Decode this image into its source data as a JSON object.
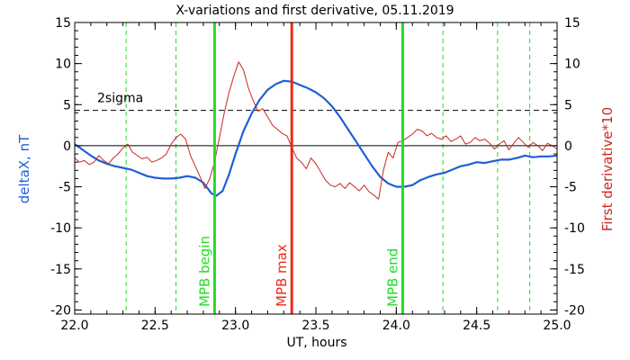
{
  "chart_data": {
    "type": "line",
    "title": "X-variations and first derivative, 05.11.2019",
    "xlabel": "UT, hours",
    "ylabel_left": "deltaX, nT",
    "ylabel_right": "First derivative*10",
    "xlim": [
      22.0,
      25.0
    ],
    "ylim_left": [
      -20.5,
      15
    ],
    "ylim_right": [
      -20.5,
      15
    ],
    "x_ticks": [
      22.0,
      22.5,
      23.0,
      23.5,
      24.0,
      24.5,
      25.0
    ],
    "x_tick_labels": [
      "22.0",
      "22.5",
      "23.0",
      "23.5",
      "24.0",
      "24.5",
      "25.0"
    ],
    "y_ticks": [
      15,
      10,
      5,
      0,
      -5,
      -10,
      -15,
      -20
    ],
    "y_tick_labels": [
      "15",
      "10",
      "5",
      "0",
      "-5",
      "-10",
      "-15",
      "-20"
    ],
    "colors": {
      "deltaX": "#1f5fd6",
      "derivative": "#c8281e",
      "mpb_line": "#22dd22",
      "max_line": "#ee2a14",
      "axes": "#000000"
    },
    "sigma_level": 4.3,
    "sigma_label": "2sigma",
    "markers": [
      {
        "x": 22.87,
        "label": "MPB begin",
        "color": "#22dd22"
      },
      {
        "x": 23.35,
        "label": "MPB max",
        "color": "#ee2a14"
      },
      {
        "x": 24.04,
        "label": "MPB end",
        "color": "#22dd22"
      }
    ],
    "dashed_verticals": [
      22.32,
      22.63,
      24.29,
      24.63,
      24.83
    ],
    "series": [
      {
        "axis": "left",
        "x": [
          22.0,
          22.05,
          22.1,
          22.15,
          22.2,
          22.25,
          22.3,
          22.35,
          22.4,
          22.45,
          22.5,
          22.55,
          22.6,
          22.65,
          22.7,
          22.75,
          22.8,
          22.85,
          22.88,
          22.92,
          22.96,
          23.0,
          23.05,
          23.1,
          23.15,
          23.2,
          23.25,
          23.3,
          23.35,
          23.4,
          23.45,
          23.5,
          23.55,
          23.6,
          23.65,
          23.7,
          23.75,
          23.8,
          23.85,
          23.9,
          23.95,
          24.0,
          24.05,
          24.1,
          24.15,
          24.2,
          24.25,
          24.3,
          24.35,
          24.4,
          24.45,
          24.5,
          24.55,
          24.6,
          24.65,
          24.7,
          24.75,
          24.8,
          24.85,
          24.9,
          24.95,
          25.0
        ],
        "values": [
          0.2,
          -0.5,
          -1.2,
          -1.8,
          -2.2,
          -2.5,
          -2.7,
          -2.9,
          -3.3,
          -3.7,
          -3.9,
          -4.0,
          -4.0,
          -3.9,
          -3.7,
          -3.9,
          -4.5,
          -5.8,
          -6.1,
          -5.5,
          -3.5,
          -1.0,
          1.8,
          3.9,
          5.6,
          6.8,
          7.5,
          7.9,
          7.8,
          7.4,
          7.0,
          6.5,
          5.8,
          4.8,
          3.5,
          2.0,
          0.5,
          -1.0,
          -2.5,
          -3.8,
          -4.6,
          -5.0,
          -5.0,
          -4.8,
          -4.2,
          -3.8,
          -3.5,
          -3.3,
          -2.9,
          -2.5,
          -2.3,
          -2.0,
          -2.1,
          -1.9,
          -1.7,
          -1.7,
          -1.5,
          -1.2,
          -1.4,
          -1.3,
          -1.3,
          -1.2
        ]
      },
      {
        "axis": "right",
        "x": [
          22.0,
          22.03,
          22.06,
          22.09,
          22.12,
          22.15,
          22.18,
          22.21,
          22.24,
          22.27,
          22.3,
          22.33,
          22.36,
          22.39,
          22.42,
          22.45,
          22.48,
          22.51,
          22.54,
          22.57,
          22.6,
          22.63,
          22.66,
          22.69,
          22.72,
          22.75,
          22.78,
          22.81,
          22.84,
          22.87,
          22.9,
          22.93,
          22.96,
          22.99,
          23.02,
          23.05,
          23.08,
          23.11,
          23.14,
          23.17,
          23.2,
          23.23,
          23.26,
          23.29,
          23.32,
          23.35,
          23.38,
          23.41,
          23.44,
          23.47,
          23.5,
          23.53,
          23.56,
          23.59,
          23.62,
          23.65,
          23.68,
          23.71,
          23.74,
          23.77,
          23.8,
          23.83,
          23.86,
          23.89,
          23.92,
          23.95,
          23.98,
          24.01,
          24.04,
          24.07,
          24.1,
          24.13,
          24.16,
          24.19,
          24.22,
          24.25,
          24.28,
          24.31,
          24.34,
          24.37,
          24.4,
          24.43,
          24.46,
          24.49,
          24.52,
          24.55,
          24.58,
          24.61,
          24.64,
          24.67,
          24.7,
          24.73,
          24.76,
          24.79,
          24.82,
          24.85,
          24.88,
          24.91,
          24.94,
          24.97,
          25.0
        ],
        "values": [
          -1.5,
          -2.0,
          -1.8,
          -2.3,
          -2.0,
          -1.2,
          -1.8,
          -2.2,
          -1.5,
          -1.0,
          -0.3,
          0.2,
          -0.8,
          -1.2,
          -1.6,
          -1.4,
          -2.0,
          -1.8,
          -1.5,
          -1.0,
          0.2,
          1.0,
          1.4,
          0.8,
          -1.2,
          -2.5,
          -3.8,
          -5.2,
          -4.0,
          -2.0,
          1.0,
          4.0,
          6.5,
          8.5,
          10.2,
          9.2,
          7.0,
          5.5,
          4.2,
          4.5,
          3.5,
          2.5,
          2.0,
          1.5,
          1.2,
          -0.2,
          -1.5,
          -2.0,
          -2.8,
          -1.5,
          -2.2,
          -3.2,
          -4.2,
          -4.8,
          -5.0,
          -4.6,
          -5.2,
          -4.5,
          -5.0,
          -5.5,
          -4.8,
          -5.6,
          -6.0,
          -6.5,
          -3.0,
          -0.8,
          -1.5,
          0.4,
          0.6,
          1.0,
          1.4,
          2.0,
          1.8,
          1.2,
          1.5,
          1.0,
          0.8,
          1.2,
          0.5,
          0.8,
          1.2,
          0.2,
          0.4,
          1.0,
          0.6,
          0.8,
          0.3,
          -0.4,
          0.2,
          0.6,
          -0.5,
          0.3,
          1.0,
          0.4,
          -0.2,
          0.4,
          0.0,
          -0.6,
          0.3,
          0.0,
          -0.4
        ]
      }
    ]
  }
}
